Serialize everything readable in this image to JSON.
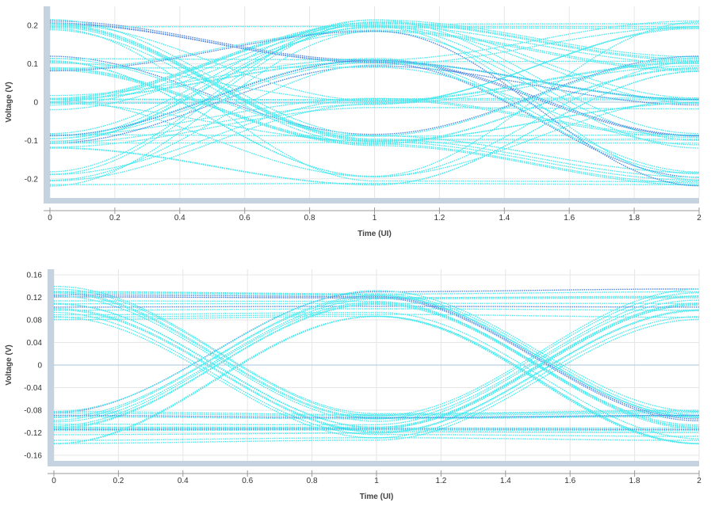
{
  "colors": {
    "trace": "#2ee6ec",
    "trace_dense": "#3a78e0",
    "scrollbar": "#c5d2e0",
    "grid": "#e6e6e6",
    "zero_line": "#a9c6de",
    "axis": "#999999"
  },
  "chart_data": [
    {
      "type": "scatter",
      "render_style": "eye-diagram",
      "xlabel": "Time (UI)",
      "ylabel": "Voltage (V)",
      "xlim": [
        0,
        2
      ],
      "ylim": [
        -0.25,
        0.25
      ],
      "x_ticks": [
        0,
        0.2,
        0.4,
        0.6,
        0.8,
        1,
        1.2,
        1.4,
        1.6,
        1.8,
        2
      ],
      "x_tick_labels": [
        "0",
        "0.2",
        "0.4",
        "0.6",
        "0.8",
        "1",
        "1.2",
        "1.4",
        "1.6",
        "1.8",
        "2"
      ],
      "y_ticks": [
        0.2,
        0.1,
        0,
        -0.1,
        -0.2
      ],
      "y_tick_labels": [
        "0.2",
        "0.1",
        "0",
        "-0.1",
        "-0.2"
      ],
      "grid": true,
      "levels": [
        -0.2,
        -0.1,
        0,
        0.1,
        0.2
      ],
      "level_spread": 0.02,
      "eye_centers": [
        0,
        1,
        2
      ],
      "crossings": [
        0.5,
        1.5
      ],
      "eye_status": "closed",
      "amplitude_range": [
        -0.22,
        0.22
      ]
    },
    {
      "type": "scatter",
      "render_style": "eye-diagram",
      "xlabel": "Time (UI)",
      "ylabel": "Voltage (V)",
      "xlim": [
        0,
        2
      ],
      "ylim": [
        -0.17,
        0.17
      ],
      "x_ticks": [
        0,
        0.2,
        0.4,
        0.6,
        0.8,
        1,
        1.2,
        1.4,
        1.6,
        1.8,
        2
      ],
      "x_tick_labels": [
        "0",
        "0.2",
        "0.4",
        "0.6",
        "0.8",
        "1",
        "1.2",
        "1.4",
        "1.6",
        "1.8",
        "2"
      ],
      "y_ticks": [
        0.16,
        0.12,
        0.08,
        0.04,
        0,
        -0.04,
        -0.08,
        -0.12,
        -0.16
      ],
      "y_tick_labels": [
        "0.16",
        "0.12",
        "0.08",
        "0.04",
        "0",
        "-0.04",
        "-0.08",
        "-0.12",
        "-0.16"
      ],
      "grid": true,
      "levels": [
        -0.11,
        0.11
      ],
      "level_spread": 0.03,
      "eye_centers": [
        0,
        1,
        2
      ],
      "crossings": [
        0.5,
        1.5
      ],
      "crossing_voltage": 0,
      "eye_status": "open",
      "amplitude_range": [
        -0.14,
        0.14
      ]
    }
  ]
}
